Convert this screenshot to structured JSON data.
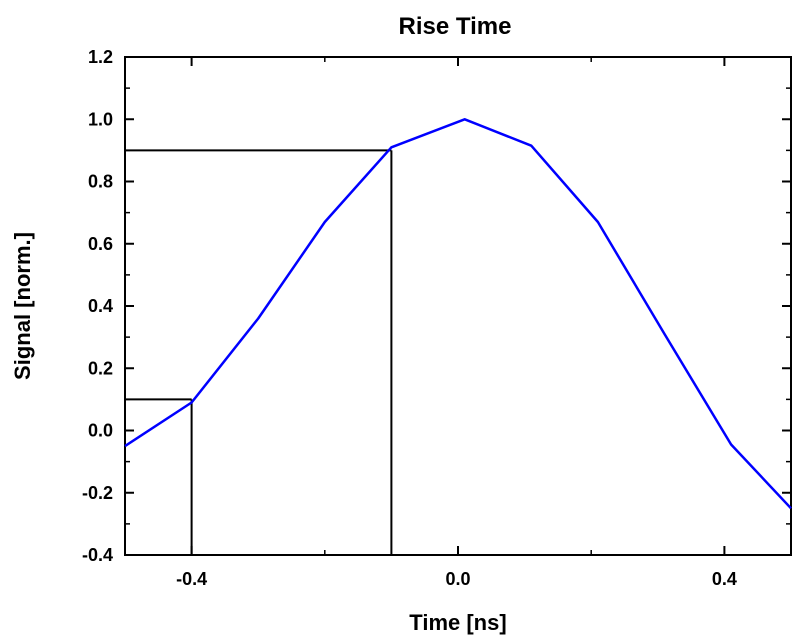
{
  "chart_data": {
    "type": "line",
    "title": "Rise Time",
    "xlabel": "Time [ns]",
    "ylabel": "Signal [norm.]",
    "xlim": [
      -0.5,
      0.5
    ],
    "ylim": [
      -0.4,
      1.2
    ],
    "xticks": [
      -0.4,
      0.0,
      0.4
    ],
    "xtick_labels": [
      "-0.4",
      "0.0",
      "0.4"
    ],
    "yticks": [
      -0.4,
      -0.2,
      0.0,
      0.2,
      0.4,
      0.6,
      0.8,
      1.0,
      1.2
    ],
    "ytick_labels": [
      "-0.4",
      "-0.2",
      "0.0",
      "0.2",
      "0.4",
      "0.6",
      "0.8",
      "1.0",
      "1.2"
    ],
    "grid": false,
    "series": [
      {
        "color": "#0000ff",
        "x": [
          -0.5,
          -0.4,
          -0.3,
          -0.2,
          -0.1,
          0.01,
          0.11,
          0.21,
          0.31,
          0.41,
          0.5
        ],
        "y": [
          -0.05,
          0.09,
          0.36,
          0.67,
          0.91,
          1.0,
          0.915,
          0.67,
          0.31,
          -0.045,
          -0.25
        ]
      }
    ],
    "annotations": {
      "color": "#000000",
      "markers": [
        {
          "x": -0.4,
          "y": 0.1
        },
        {
          "x": -0.1,
          "y": 0.9
        }
      ]
    }
  }
}
